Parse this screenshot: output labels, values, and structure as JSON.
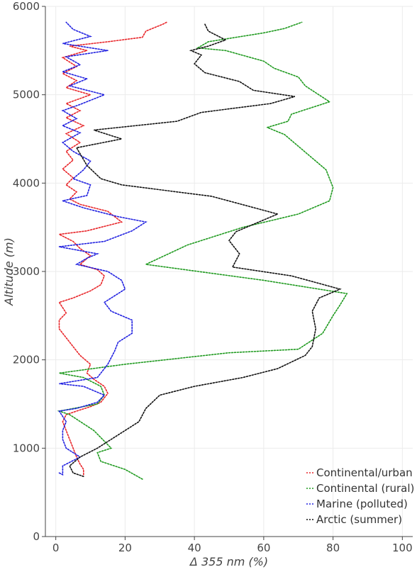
{
  "chart_data": {
    "type": "line",
    "xlabel": "Δ 355 nm (%)",
    "ylabel": "Altitude (m)",
    "xlim": [
      -3,
      103
    ],
    "ylim": [
      0,
      6000
    ],
    "xticks": [
      0,
      20,
      40,
      60,
      80,
      100
    ],
    "yticks": [
      0,
      1000,
      2000,
      3000,
      4000,
      5000,
      6000
    ],
    "grid": true,
    "legend": "bottom-right",
    "series": [
      {
        "name": "Continental/urban",
        "color": "#e8262a",
        "points": [
          [
            8,
            700
          ],
          [
            8,
            760
          ],
          [
            7,
            820
          ],
          [
            6,
            900
          ],
          [
            5,
            1000
          ],
          [
            4,
            1100
          ],
          [
            3,
            1200
          ],
          [
            2,
            1300
          ],
          [
            3,
            1380
          ],
          [
            6,
            1420
          ],
          [
            10,
            1470
          ],
          [
            13,
            1520
          ],
          [
            15,
            1620
          ],
          [
            14,
            1700
          ],
          [
            11,
            1780
          ],
          [
            9,
            1850
          ],
          [
            10,
            1950
          ],
          [
            7,
            2050
          ],
          [
            5,
            2150
          ],
          [
            3,
            2250
          ],
          [
            1,
            2350
          ],
          [
            1,
            2450
          ],
          [
            3,
            2530
          ],
          [
            1,
            2650
          ],
          [
            5,
            2700
          ],
          [
            10,
            2780
          ],
          [
            13,
            2850
          ],
          [
            14,
            2950
          ],
          [
            12,
            3020
          ],
          [
            7,
            3080
          ],
          [
            10,
            3180
          ],
          [
            7,
            3260
          ],
          [
            5,
            3340
          ],
          [
            1,
            3420
          ],
          [
            9,
            3460
          ],
          [
            19,
            3560
          ],
          [
            15,
            3680
          ],
          [
            7,
            3760
          ],
          [
            4,
            3820
          ],
          [
            6,
            3900
          ],
          [
            3,
            3980
          ],
          [
            5,
            4060
          ],
          [
            2,
            4160
          ],
          [
            5,
            4260
          ],
          [
            3,
            4360
          ],
          [
            7,
            4460
          ],
          [
            3,
            4560
          ],
          [
            8,
            4650
          ],
          [
            3,
            4740
          ],
          [
            7,
            4820
          ],
          [
            3,
            4900
          ],
          [
            10,
            5000
          ],
          [
            3,
            5080
          ],
          [
            6,
            5160
          ],
          [
            2,
            5240
          ],
          [
            6,
            5320
          ],
          [
            2,
            5420
          ],
          [
            9,
            5500
          ],
          [
            4,
            5550
          ],
          [
            15,
            5600
          ],
          [
            25,
            5650
          ],
          [
            26,
            5720
          ],
          [
            31,
            5800
          ],
          [
            32,
            5820
          ]
        ]
      },
      {
        "name": "Continental (rural)",
        "color": "#1f9a1f",
        "points": [
          [
            25,
            650
          ],
          [
            20,
            760
          ],
          [
            13,
            850
          ],
          [
            12,
            950
          ],
          [
            16,
            1000
          ],
          [
            11,
            1200
          ],
          [
            4,
            1380
          ],
          [
            1,
            1420
          ],
          [
            12,
            1500
          ],
          [
            14,
            1600
          ],
          [
            13,
            1700
          ],
          [
            8,
            1800
          ],
          [
            1,
            1850
          ],
          [
            20,
            1950
          ],
          [
            50,
            2080
          ],
          [
            70,
            2120
          ],
          [
            77,
            2300
          ],
          [
            80,
            2500
          ],
          [
            82,
            2620
          ],
          [
            84,
            2750
          ],
          [
            60,
            2900
          ],
          [
            26,
            3080
          ],
          [
            38,
            3300
          ],
          [
            54,
            3500
          ],
          [
            70,
            3650
          ],
          [
            79,
            3800
          ],
          [
            80,
            3950
          ],
          [
            78,
            4150
          ],
          [
            72,
            4350
          ],
          [
            66,
            4550
          ],
          [
            61,
            4630
          ],
          [
            67,
            4700
          ],
          [
            68,
            4780
          ],
          [
            79,
            4920
          ],
          [
            72,
            5100
          ],
          [
            70,
            5200
          ],
          [
            63,
            5300
          ],
          [
            60,
            5380
          ],
          [
            49,
            5500
          ],
          [
            41,
            5530
          ],
          [
            44,
            5600
          ],
          [
            60,
            5700
          ],
          [
            66,
            5750
          ],
          [
            71,
            5820
          ]
        ]
      },
      {
        "name": "Marine (polluted)",
        "color": "#2020e0",
        "points": [
          [
            1,
            720
          ],
          [
            2,
            700
          ],
          [
            2,
            800
          ],
          [
            7,
            900
          ],
          [
            3,
            1000
          ],
          [
            2,
            1100
          ],
          [
            2,
            1200
          ],
          [
            3,
            1300
          ],
          [
            1,
            1420
          ],
          [
            6,
            1450
          ],
          [
            12,
            1520
          ],
          [
            14,
            1600
          ],
          [
            8,
            1700
          ],
          [
            1,
            1730
          ],
          [
            12,
            1800
          ],
          [
            15,
            1950
          ],
          [
            17,
            2100
          ],
          [
            18,
            2200
          ],
          [
            22,
            2300
          ],
          [
            22,
            2450
          ],
          [
            16,
            2550
          ],
          [
            14,
            2650
          ],
          [
            20,
            2800
          ],
          [
            19,
            2900
          ],
          [
            15,
            3000
          ],
          [
            6,
            3080
          ],
          [
            9,
            3150
          ],
          [
            12,
            3200
          ],
          [
            1,
            3280
          ],
          [
            14,
            3340
          ],
          [
            22,
            3460
          ],
          [
            26,
            3560
          ],
          [
            18,
            3620
          ],
          [
            8,
            3720
          ],
          [
            2,
            3800
          ],
          [
            9,
            3860
          ],
          [
            10,
            3980
          ],
          [
            5,
            4050
          ],
          [
            8,
            4150
          ],
          [
            10,
            4250
          ],
          [
            5,
            4360
          ],
          [
            2,
            4460
          ],
          [
            7,
            4570
          ],
          [
            2,
            4650
          ],
          [
            6,
            4730
          ],
          [
            2,
            4820
          ],
          [
            7,
            4890
          ],
          [
            14,
            5000
          ],
          [
            4,
            5100
          ],
          [
            9,
            5180
          ],
          [
            2,
            5260
          ],
          [
            7,
            5340
          ],
          [
            3,
            5430
          ],
          [
            15,
            5500
          ],
          [
            2,
            5580
          ],
          [
            10,
            5660
          ],
          [
            5,
            5740
          ],
          [
            3,
            5820
          ]
        ]
      },
      {
        "name": "Arctic (summer)",
        "color": "#111111",
        "points": [
          [
            8,
            680
          ],
          [
            5,
            720
          ],
          [
            4,
            800
          ],
          [
            7,
            900
          ],
          [
            12,
            1000
          ],
          [
            18,
            1150
          ],
          [
            24,
            1300
          ],
          [
            26,
            1450
          ],
          [
            30,
            1600
          ],
          [
            40,
            1700
          ],
          [
            54,
            1800
          ],
          [
            64,
            1900
          ],
          [
            72,
            2050
          ],
          [
            74,
            2150
          ],
          [
            75,
            2350
          ],
          [
            74,
            2550
          ],
          [
            76,
            2700
          ],
          [
            82,
            2800
          ],
          [
            68,
            2950
          ],
          [
            51,
            3050
          ],
          [
            53,
            3200
          ],
          [
            50,
            3350
          ],
          [
            52,
            3450
          ],
          [
            64,
            3650
          ],
          [
            45,
            3850
          ],
          [
            19,
            3980
          ],
          [
            13,
            4050
          ],
          [
            9,
            4200
          ],
          [
            6,
            4400
          ],
          [
            19,
            4500
          ],
          [
            11,
            4600
          ],
          [
            35,
            4700
          ],
          [
            42,
            4800
          ],
          [
            62,
            4900
          ],
          [
            69,
            4980
          ],
          [
            57,
            5050
          ],
          [
            53,
            5150
          ],
          [
            43,
            5250
          ],
          [
            40,
            5350
          ],
          [
            42,
            5450
          ],
          [
            39,
            5500
          ],
          [
            44,
            5550
          ],
          [
            49,
            5620
          ],
          [
            44,
            5720
          ],
          [
            43,
            5800
          ]
        ]
      }
    ]
  }
}
